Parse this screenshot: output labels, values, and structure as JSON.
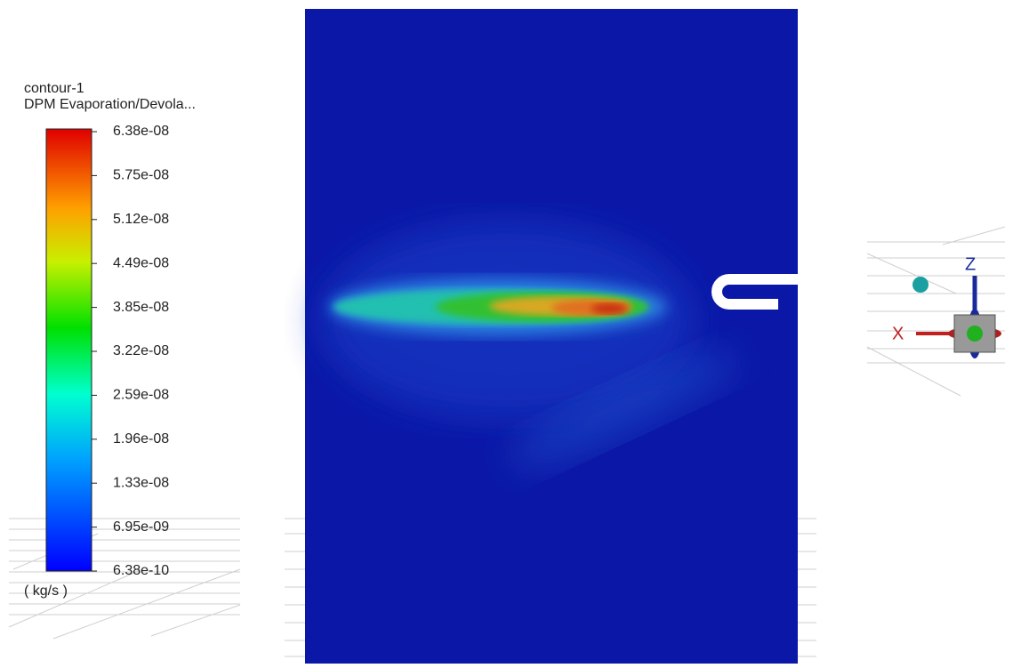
{
  "legend": {
    "title": "contour-1",
    "subtitle": "DPM Evaporation/Devola...",
    "labels": [
      "6.38e-08",
      "5.75e-08",
      "5.12e-08",
      "4.49e-08",
      "3.85e-08",
      "3.22e-08",
      "2.59e-08",
      "1.96e-08",
      "1.33e-08",
      "6.95e-09",
      "6.38e-10"
    ],
    "unit": "( kg/s )"
  },
  "triad": {
    "x_axis": "X",
    "z_axis": "Z"
  }
}
